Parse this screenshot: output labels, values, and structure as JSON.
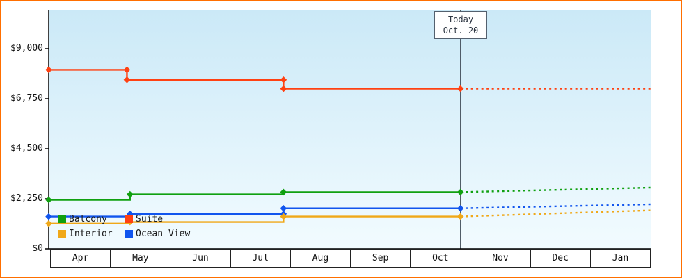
{
  "chart_data": {
    "type": "line",
    "x_axis": {
      "months": [
        "Apr",
        "May",
        "Jun",
        "Jul",
        "Aug",
        "Sep",
        "Oct",
        "Nov",
        "Dec",
        "Jan"
      ]
    },
    "y_axis": {
      "ticks": [
        {
          "label": "$0",
          "value": 0
        },
        {
          "label": "$2,250",
          "value": 2250
        },
        {
          "label": "$4,500",
          "value": 4500
        },
        {
          "label": "$6,750",
          "value": 6750
        },
        {
          "label": "$9,000",
          "value": 9000
        }
      ],
      "ylim": [
        0,
        10700
      ]
    },
    "today_marker": {
      "label_line1": "Today",
      "label_line2": "Oct. 20",
      "x": 6.84
    },
    "series": [
      {
        "name": "Suite",
        "color": "#ff4112",
        "history": [
          [
            0,
            8050
          ],
          [
            1.3,
            8050
          ],
          [
            1.3,
            7600
          ],
          [
            3.9,
            7600
          ],
          [
            3.9,
            7200
          ],
          [
            6.84,
            7200
          ]
        ],
        "forecast": [
          [
            6.84,
            7200
          ],
          [
            10,
            7200
          ]
        ],
        "markers": [
          [
            0,
            8050
          ],
          [
            1.3,
            8050
          ],
          [
            1.3,
            7600
          ],
          [
            3.9,
            7600
          ],
          [
            3.9,
            7200
          ],
          [
            6.84,
            7200
          ]
        ]
      },
      {
        "name": "Balcony",
        "color": "#10a010",
        "history": [
          [
            0,
            2200
          ],
          [
            1.35,
            2200
          ],
          [
            1.35,
            2450
          ],
          [
            3.9,
            2450
          ],
          [
            3.9,
            2550
          ],
          [
            6.84,
            2550
          ]
        ],
        "forecast": [
          [
            6.84,
            2550
          ],
          [
            10,
            2750
          ]
        ],
        "markers": [
          [
            0,
            2200
          ],
          [
            1.35,
            2450
          ],
          [
            3.9,
            2550
          ],
          [
            6.84,
            2550
          ]
        ]
      },
      {
        "name": "Ocean View",
        "color": "#1155ee",
        "history": [
          [
            0,
            1450
          ],
          [
            1.35,
            1450
          ],
          [
            1.35,
            1570
          ],
          [
            3.9,
            1570
          ],
          [
            3.9,
            1820
          ],
          [
            6.84,
            1820
          ]
        ],
        "forecast": [
          [
            6.84,
            1820
          ],
          [
            10,
            2000
          ]
        ],
        "markers": [
          [
            0,
            1450
          ],
          [
            1.35,
            1570
          ],
          [
            3.9,
            1570
          ],
          [
            3.9,
            1820
          ],
          [
            6.84,
            1820
          ]
        ]
      },
      {
        "name": "Interior",
        "color": "#f0a818",
        "history": [
          [
            0,
            1130
          ],
          [
            1.35,
            1130
          ],
          [
            1.35,
            1200
          ],
          [
            3.9,
            1200
          ],
          [
            3.9,
            1450
          ],
          [
            6.84,
            1450
          ]
        ],
        "forecast": [
          [
            6.84,
            1450
          ],
          [
            10,
            1730
          ]
        ],
        "markers": [
          [
            0,
            1130
          ],
          [
            1.35,
            1200
          ],
          [
            3.9,
            1450
          ],
          [
            6.84,
            1450
          ]
        ]
      }
    ],
    "legend": [
      {
        "label": "Balcony",
        "color": "#10a010"
      },
      {
        "label": "Suite",
        "color": "#ff4112"
      },
      {
        "label": "Interior",
        "color": "#f0a818"
      },
      {
        "label": "Ocean View",
        "color": "#1155ee"
      }
    ],
    "colors": {
      "frame_border": "#ff6f00",
      "plot_top": "#cbe9f7",
      "plot_bottom": "#f2fbff",
      "axis": "#000000",
      "today_line": "#47525e"
    }
  }
}
